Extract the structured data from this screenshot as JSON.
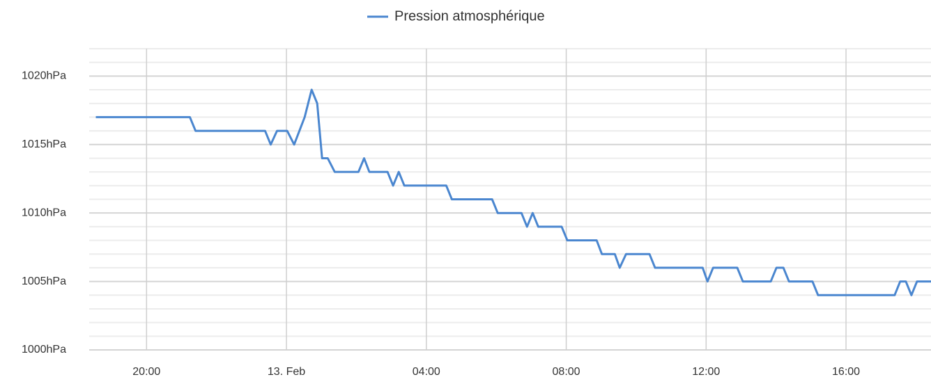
{
  "chart_data": {
    "type": "line",
    "series": [
      {
        "name": "Pression atmosphérique",
        "color": "#4a86cf",
        "x": [
          18.55,
          21.24,
          21.4,
          23.39,
          23.55,
          23.73,
          24.02,
          24.22,
          24.52,
          24.72,
          24.88,
          25.02,
          25.18,
          25.38,
          26.06,
          26.22,
          26.37,
          26.89,
          27.05,
          27.21,
          27.37,
          28.57,
          28.73,
          29.88,
          30.04,
          30.72,
          30.88,
          31.04,
          31.2,
          31.87,
          32.03,
          32.87,
          33.02,
          33.39,
          33.53,
          33.71,
          34.38,
          34.54,
          35.9,
          36.04,
          36.2,
          36.89,
          37.05,
          37.85,
          38.01,
          38.21,
          38.37,
          39.04,
          39.2,
          41.39,
          41.55,
          41.71,
          41.87,
          42.03,
          42.43
        ],
        "values": [
          1017,
          1017,
          1016,
          1016,
          1015,
          1016,
          1016,
          1015,
          1017,
          1019,
          1018,
          1014,
          1014,
          1013,
          1013,
          1014,
          1013,
          1013,
          1012,
          1013,
          1012,
          1012,
          1011,
          1011,
          1010,
          1010,
          1009,
          1010,
          1009,
          1009,
          1008,
          1008,
          1007,
          1007,
          1006,
          1007,
          1007,
          1006,
          1006,
          1005,
          1006,
          1006,
          1005,
          1005,
          1006,
          1006,
          1005,
          1005,
          1004,
          1004,
          1005,
          1005,
          1004,
          1005,
          1005
        ]
      }
    ],
    "xlim": [
      18.36,
      42.43
    ],
    "xticks": [
      {
        "value": 20,
        "label": "20:00"
      },
      {
        "value": 24,
        "label": "13. Feb"
      },
      {
        "value": 28,
        "label": "04:00"
      },
      {
        "value": 32,
        "label": "08:00"
      },
      {
        "value": 36,
        "label": "12:00"
      },
      {
        "value": 40,
        "label": "16:00"
      }
    ],
    "ylim": [
      1000,
      1022
    ],
    "yticks": [
      {
        "value": 1000,
        "label": "1000hPa"
      },
      {
        "value": 1005,
        "label": "1005hPa"
      },
      {
        "value": 1010,
        "label": "1010hPa"
      },
      {
        "value": 1015,
        "label": "1015hPa"
      },
      {
        "value": 1020,
        "label": "1020hPa"
      }
    ],
    "minor_yticks": [
      1001,
      1002,
      1003,
      1004,
      1006,
      1007,
      1008,
      1009,
      1011,
      1012,
      1013,
      1014,
      1016,
      1017,
      1018,
      1019,
      1021,
      1022
    ],
    "grid": true,
    "legend": "top"
  }
}
